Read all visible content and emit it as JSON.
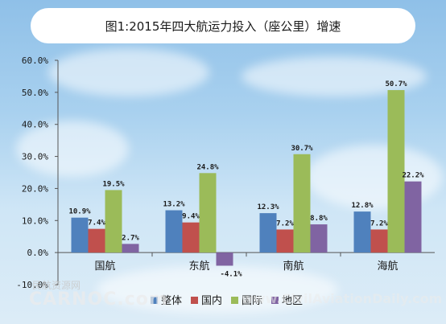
{
  "chart_data": {
    "type": "bar",
    "title": "图1:2015年四大航运力投入（座公里）增速",
    "categories": [
      "国航",
      "东航",
      "南航",
      "海航"
    ],
    "series": [
      {
        "name": "整体",
        "color": "#4f81bd",
        "values": [
          10.9,
          13.2,
          12.3,
          12.8
        ],
        "labels": [
          "10.9%",
          "13.2%",
          "12.3%",
          "12.8%"
        ]
      },
      {
        "name": "国内",
        "color": "#c0504d",
        "values": [
          7.4,
          9.4,
          7.2,
          7.2
        ],
        "labels": [
          "7.4%",
          "9.4%",
          "7.2%",
          "7.2%"
        ]
      },
      {
        "name": "国际",
        "color": "#9bbb59",
        "values": [
          19.5,
          24.8,
          30.7,
          50.7
        ],
        "labels": [
          "19.5%",
          "24.8%",
          "30.7%",
          "50.7%"
        ]
      },
      {
        "name": "地区",
        "color": "#8064a2",
        "values": [
          2.7,
          -4.1,
          8.8,
          22.2
        ],
        "labels": [
          "2.7%",
          "-4.1%",
          "8.8%",
          "22.2%"
        ]
      }
    ],
    "y_ticks": [
      "-10.0%",
      "0.0%",
      "10.0%",
      "20.0%",
      "30.0%",
      "40.0%",
      "50.0%",
      "60.0%"
    ],
    "ylim": [
      -10,
      60
    ],
    "legend_position": "bottom",
    "grid": false
  },
  "watermarks": {
    "cn": "民航资源网",
    "en": "CARNOC.com",
    "site": "www.CivilAviationDaily.com"
  }
}
